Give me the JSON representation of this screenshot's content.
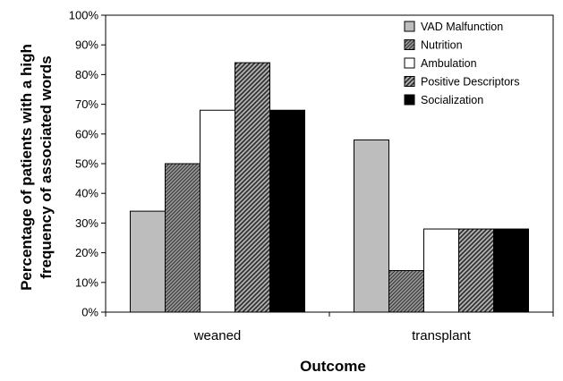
{
  "chart_data": {
    "type": "bar",
    "xlabel": "Outcome",
    "ylabel_lines": [
      "Percentage of patients with a high",
      "frequency of associated words"
    ],
    "categories": [
      "weaned",
      "transplant"
    ],
    "ylim": [
      0,
      100
    ],
    "yticks": [
      "0%",
      "10%",
      "20%",
      "30%",
      "40%",
      "50%",
      "60%",
      "70%",
      "80%",
      "90%",
      "100%"
    ],
    "grid": false,
    "legend_position": "top-right",
    "series": [
      {
        "name": "VAD Malfunction",
        "values": [
          34,
          58
        ],
        "color": "#bdbdbd",
        "pattern": "solid"
      },
      {
        "name": "Nutrition",
        "values": [
          50,
          14
        ],
        "color": "#808080",
        "pattern": "diag-fine"
      },
      {
        "name": "Ambulation",
        "values": [
          68,
          28
        ],
        "color": "#ffffff",
        "pattern": "solid"
      },
      {
        "name": "Positive Descriptors",
        "values": [
          84,
          28
        ],
        "color": "#909090",
        "pattern": "diag-coarse"
      },
      {
        "name": "Socialization",
        "values": [
          68,
          28
        ],
        "color": "#000000",
        "pattern": "solid"
      }
    ]
  }
}
